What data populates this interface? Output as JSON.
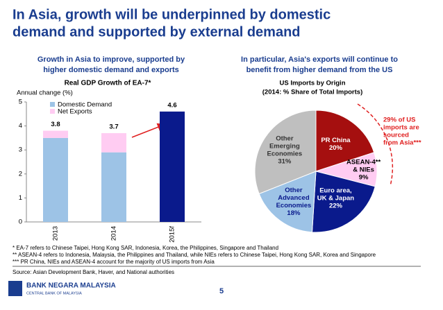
{
  "header": {
    "title_lines": [
      "In Asia, growth will be underpinned by domestic",
      "demand and supported by external demand"
    ]
  },
  "chart_data": [
    {
      "type": "stacked_bar",
      "subtitle_lines": [
        "Growth in Asia to improve, supported by",
        "higher domestic demand and exports"
      ],
      "title": "Real GDP Growth of EA-7*",
      "y_label": "Annual change (%)",
      "categories": [
        "2013",
        "2014",
        "2015f"
      ],
      "series": [
        {
          "name": "Domestic Demand",
          "color": "#9dc3e6",
          "point_colors": [
            "#9dc3e6",
            "#9dc3e6",
            "#0a1a8c"
          ],
          "values": [
            3.5,
            2.9,
            4.6
          ]
        },
        {
          "name": "Net Exports",
          "color": "#ffccf2",
          "values": [
            0.3,
            0.8,
            null
          ]
        }
      ],
      "totals": [
        3.8,
        3.7,
        4.6
      ],
      "ylim": [
        0,
        5
      ],
      "yticks": [
        0,
        1,
        2,
        3,
        4,
        5
      ],
      "legend": "top-left"
    },
    {
      "type": "pie",
      "subtitle_lines": [
        "In particular, Asia's exports will continue to",
        "benefit from higher demand from the US"
      ],
      "title_lines": [
        "US Imports by Origin",
        "(2014: % Share of Total Imports)"
      ],
      "labels": [
        [
          "PR China"
        ],
        [
          "ASEAN-4**",
          "& NIEs"
        ],
        [
          "Euro area,",
          "UK & Japan"
        ],
        [
          "Other",
          "Advanced",
          "Economies"
        ],
        [
          "Other",
          "Emerging",
          "Economies"
        ]
      ],
      "values": [
        20,
        9,
        22,
        18,
        31
      ],
      "value_labels": [
        "20%",
        "9%",
        "22%",
        "18%",
        "31%"
      ],
      "colors": [
        "#a50f0f",
        "#ffccf2",
        "#0a1a8c",
        "#9dc3e6",
        "#bfbfbf"
      ],
      "annotation_lines": [
        "29% of US",
        "imports are",
        "sourced",
        "from Asia***"
      ]
    }
  ],
  "footnotes": [
    "* EA-7 refers to Chinese Taipei, Hong Kong SAR, Indonesia, Korea, the Philippines, Singapore and Thailand",
    "** ASEAN-4 refers to Indonesia, Malaysia, the Philippines and Thailand, while NIEs refers to Chinese Taipei, Hong Kong SAR, Korea and Singapore",
    "*** PR China, NIEs and ASEAN-4 account for the majority of US imports from Asia"
  ],
  "source": "Source: Asian Development Bank, Haver, and National authorities",
  "footer": {
    "bank": "BANK NEGARA MALAYSIA",
    "sub": "CENTRAL BANK OF MALAYSIA",
    "page": "5"
  }
}
